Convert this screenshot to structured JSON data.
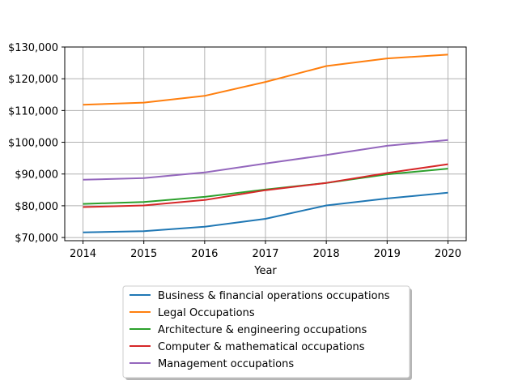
{
  "chart_data": {
    "type": "line",
    "title": "",
    "xlabel": "Year",
    "ylabel": "",
    "x": [
      2014,
      2015,
      2016,
      2017,
      2018,
      2019,
      2020
    ],
    "x_tick_labels": [
      "2014",
      "2015",
      "2016",
      "2017",
      "2018",
      "2019",
      "2020"
    ],
    "y_ticks": [
      70000,
      80000,
      90000,
      100000,
      110000,
      120000,
      130000
    ],
    "y_tick_labels": [
      "$70,000",
      "$80,000",
      "$90,000",
      "$100,000",
      "$110,000",
      "$120,000",
      "$130,000"
    ],
    "xlim": [
      2013.7,
      2020.3
    ],
    "ylim": [
      69000,
      130000
    ],
    "grid": true,
    "legend_position": "below the plot, centered",
    "series": [
      {
        "name": "Business & financial operations occupations",
        "color": "#1f77b4",
        "values": [
          71600,
          72000,
          73400,
          75900,
          80100,
          82300,
          84100
        ]
      },
      {
        "name": "Legal Occupations",
        "color": "#ff7f0e",
        "values": [
          111800,
          112500,
          114600,
          119000,
          124000,
          126400,
          127600
        ]
      },
      {
        "name": "Architecture & engineering occupations",
        "color": "#2ca02c",
        "values": [
          80600,
          81200,
          82800,
          85100,
          87200,
          89900,
          91700
        ]
      },
      {
        "name": "Computer & mathematical occupations",
        "color": "#d62728",
        "values": [
          79600,
          80100,
          81800,
          84900,
          87200,
          90300,
          93100
        ]
      },
      {
        "name": "Management occupations",
        "color": "#9467bd",
        "values": [
          88200,
          88700,
          90500,
          93300,
          96000,
          98900,
          100700
        ]
      }
    ]
  }
}
